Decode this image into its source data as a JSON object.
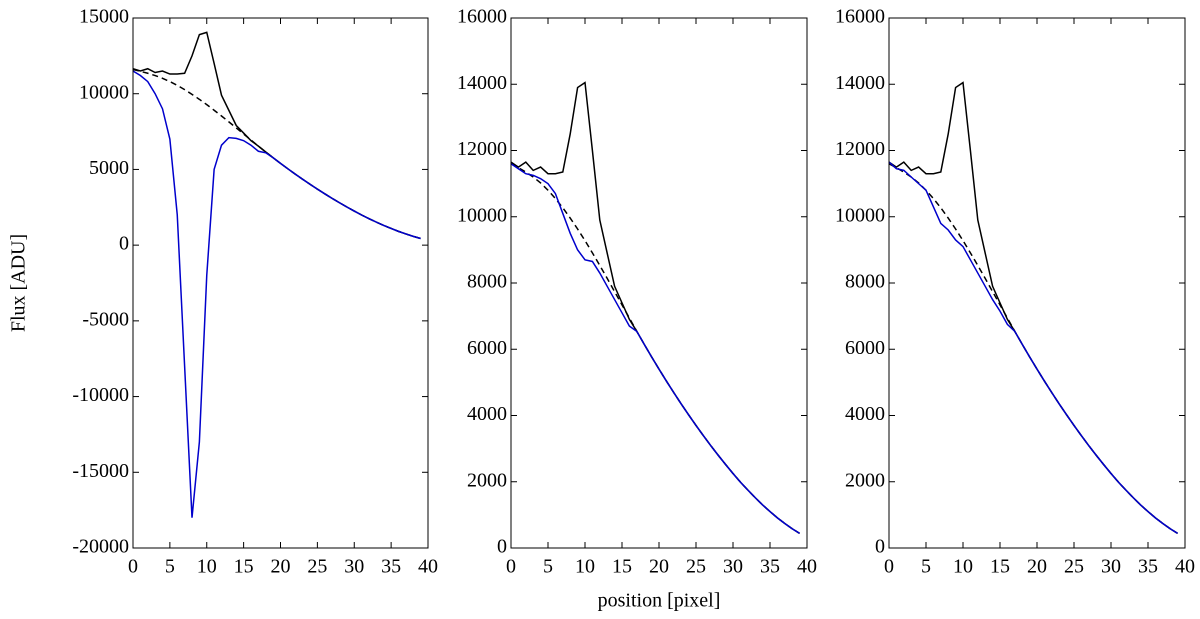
{
  "chart_data": [
    {
      "type": "line",
      "ylabel": "Flux [ADU]",
      "x": [
        0,
        1,
        2,
        3,
        4,
        5,
        6,
        7,
        8,
        9,
        10,
        11,
        12,
        13,
        14,
        15,
        16,
        17,
        18,
        19,
        20,
        21,
        22,
        23,
        24,
        25,
        26,
        27,
        28,
        29,
        30,
        31,
        32,
        33,
        34,
        35,
        36,
        37,
        38,
        39
      ],
      "xlim": [
        0,
        40
      ],
      "xticks": [
        0,
        5,
        10,
        15,
        20,
        25,
        30,
        35,
        40
      ],
      "ylim": [
        -20000,
        15000
      ],
      "yticks": [
        -20000,
        -15000,
        -10000,
        -5000,
        0,
        5000,
        10000,
        15000
      ],
      "series": [
        {
          "color": "#000000",
          "dashed": false,
          "values": [
            11650,
            11500,
            11650,
            11400,
            11500,
            11300,
            11300,
            11350,
            12500,
            13900,
            14050,
            12000,
            9900,
            8900,
            7900,
            7400,
            6900,
            6540,
            6150,
            5770,
            5400,
            5040,
            4690,
            4350,
            4020,
            3700,
            3390,
            3090,
            2800,
            2520,
            2250,
            1990,
            1750,
            1520,
            1300,
            1100,
            910,
            740,
            580,
            440
          ]
        },
        {
          "color": "#000000",
          "dashed": true,
          "values": [
            11600,
            11480,
            11350,
            11200,
            11020,
            10800,
            10550,
            10270,
            9960,
            9630,
            9280,
            8910,
            8530,
            8140,
            7740,
            7340,
            6940,
            6540,
            6150,
            5770,
            5400,
            5040,
            4690,
            4350,
            4020,
            3700,
            3390,
            3090,
            2800,
            2520,
            2250,
            1990,
            1750,
            1520,
            1300,
            1100,
            910,
            740,
            580,
            440
          ]
        },
        {
          "color": "#0000cc",
          "dashed": false,
          "values": [
            11500,
            11200,
            10800,
            10000,
            9000,
            7000,
            2000,
            -8000,
            -18000,
            -13000,
            -2000,
            5000,
            6600,
            7100,
            7050,
            6900,
            6600,
            6200,
            6100,
            5770,
            5400,
            5040,
            4690,
            4350,
            4020,
            3700,
            3390,
            3090,
            2800,
            2520,
            2250,
            1990,
            1750,
            1520,
            1300,
            1100,
            910,
            740,
            580,
            440
          ]
        }
      ]
    },
    {
      "type": "line",
      "xlabel": "position [pixel]",
      "x": [
        0,
        1,
        2,
        3,
        4,
        5,
        6,
        7,
        8,
        9,
        10,
        11,
        12,
        13,
        14,
        15,
        16,
        17,
        18,
        19,
        20,
        21,
        22,
        23,
        24,
        25,
        26,
        27,
        28,
        29,
        30,
        31,
        32,
        33,
        34,
        35,
        36,
        37,
        38,
        39
      ],
      "xlim": [
        0,
        40
      ],
      "xticks": [
        0,
        5,
        10,
        15,
        20,
        25,
        30,
        35,
        40
      ],
      "ylim": [
        0,
        16000
      ],
      "yticks": [
        0,
        2000,
        4000,
        6000,
        8000,
        10000,
        12000,
        14000,
        16000
      ],
      "series": [
        {
          "color": "#000000",
          "dashed": false,
          "values": [
            11650,
            11500,
            11650,
            11400,
            11500,
            11300,
            11300,
            11350,
            12500,
            13900,
            14050,
            12000,
            9900,
            8900,
            7900,
            7400,
            6900,
            6540,
            6150,
            5770,
            5400,
            5040,
            4690,
            4350,
            4020,
            3700,
            3390,
            3090,
            2800,
            2520,
            2250,
            1990,
            1750,
            1520,
            1300,
            1100,
            910,
            740,
            580,
            440
          ]
        },
        {
          "color": "#000000",
          "dashed": true,
          "values": [
            11600,
            11480,
            11350,
            11200,
            11020,
            10800,
            10550,
            10270,
            9960,
            9630,
            9280,
            8910,
            8530,
            8140,
            7740,
            7340,
            6940,
            6540,
            6150,
            5770,
            5400,
            5040,
            4690,
            4350,
            4020,
            3700,
            3390,
            3090,
            2800,
            2520,
            2250,
            1990,
            1750,
            1520,
            1300,
            1100,
            910,
            740,
            580,
            440
          ]
        },
        {
          "color": "#0000cc",
          "dashed": false,
          "values": [
            11600,
            11450,
            11300,
            11250,
            11150,
            11000,
            10700,
            10100,
            9500,
            9000,
            8700,
            8650,
            8300,
            7900,
            7500,
            7100,
            6700,
            6540,
            6150,
            5770,
            5400,
            5040,
            4690,
            4350,
            4020,
            3700,
            3390,
            3090,
            2800,
            2520,
            2250,
            1990,
            1750,
            1520,
            1300,
            1100,
            910,
            740,
            580,
            440
          ]
        }
      ]
    },
    {
      "type": "line",
      "x": [
        0,
        1,
        2,
        3,
        4,
        5,
        6,
        7,
        8,
        9,
        10,
        11,
        12,
        13,
        14,
        15,
        16,
        17,
        18,
        19,
        20,
        21,
        22,
        23,
        24,
        25,
        26,
        27,
        28,
        29,
        30,
        31,
        32,
        33,
        34,
        35,
        36,
        37,
        38,
        39
      ],
      "xlim": [
        0,
        40
      ],
      "xticks": [
        0,
        5,
        10,
        15,
        20,
        25,
        30,
        35,
        40
      ],
      "ylim": [
        0,
        16000
      ],
      "yticks": [
        0,
        2000,
        4000,
        6000,
        8000,
        10000,
        12000,
        14000,
        16000
      ],
      "series": [
        {
          "color": "#000000",
          "dashed": false,
          "values": [
            11650,
            11500,
            11650,
            11400,
            11500,
            11300,
            11300,
            11350,
            12500,
            13900,
            14050,
            12000,
            9900,
            8900,
            7900,
            7400,
            6900,
            6540,
            6150,
            5770,
            5400,
            5040,
            4690,
            4350,
            4020,
            3700,
            3390,
            3090,
            2800,
            2520,
            2250,
            1990,
            1750,
            1520,
            1300,
            1100,
            910,
            740,
            580,
            440
          ]
        },
        {
          "color": "#000000",
          "dashed": true,
          "values": [
            11600,
            11480,
            11350,
            11200,
            11020,
            10800,
            10550,
            10270,
            9960,
            9630,
            9280,
            8910,
            8530,
            8140,
            7740,
            7340,
            6940,
            6540,
            6150,
            5770,
            5400,
            5040,
            4690,
            4350,
            4020,
            3700,
            3390,
            3090,
            2800,
            2520,
            2250,
            1990,
            1750,
            1520,
            1300,
            1100,
            910,
            740,
            580,
            440
          ]
        },
        {
          "color": "#0000cc",
          "dashed": false,
          "values": [
            11650,
            11450,
            11400,
            11200,
            11000,
            10800,
            10300,
            9800,
            9600,
            9300,
            9100,
            8700,
            8300,
            7900,
            7500,
            7150,
            6750,
            6540,
            6150,
            5770,
            5400,
            5040,
            4690,
            4350,
            4020,
            3700,
            3390,
            3090,
            2800,
            2520,
            2250,
            1990,
            1750,
            1520,
            1300,
            1100,
            910,
            740,
            580,
            440
          ]
        }
      ]
    }
  ]
}
